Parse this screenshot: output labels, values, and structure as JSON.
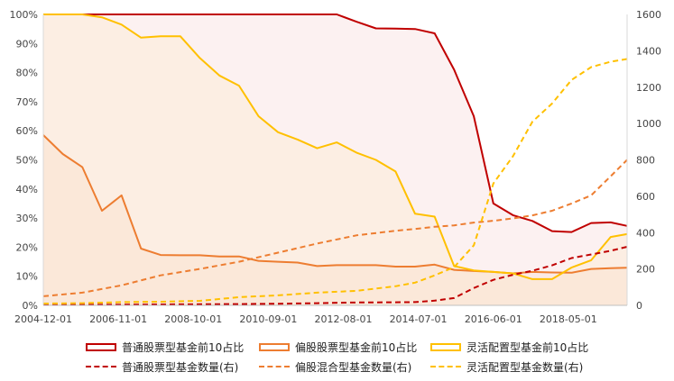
{
  "chart_data": {
    "type": "line",
    "title": "",
    "x_tick_labels": [
      "2004-12-01",
      "2006-11-01",
      "2008-10-01",
      "2010-09-01",
      "2012-08-01",
      "2014-07-01",
      "2016-06-01",
      "2018-05-01"
    ],
    "x_range": [
      "2004-12-01",
      "2019-11-01"
    ],
    "y_left": {
      "range": [
        0,
        100
      ],
      "unit": "%",
      "ticks": [
        "0%",
        "10%",
        "20%",
        "30%",
        "40%",
        "50%",
        "60%",
        "70%",
        "80%",
        "90%",
        "100%"
      ]
    },
    "y_right": {
      "range": [
        0,
        1600
      ],
      "ticks": [
        "0",
        "200",
        "400",
        "600",
        "800",
        "1000",
        "1200",
        "1400",
        "1600"
      ]
    },
    "grid": false,
    "legend_position": "bottom",
    "series": [
      {
        "name": "普通股票型基金前10占比",
        "axis": "left",
        "style": "solid-area",
        "color": "#c00000",
        "x": [
          "2004-12-01",
          "2005-12-01",
          "2006-12-01",
          "2007-12-01",
          "2008-12-01",
          "2009-12-01",
          "2010-12-01",
          "2011-06-01",
          "2011-12-01",
          "2012-06-01",
          "2012-12-01",
          "2013-06-01",
          "2013-12-01",
          "2014-06-01",
          "2014-12-01",
          "2015-06-01",
          "2015-12-01",
          "2016-06-01",
          "2016-12-01",
          "2017-06-01",
          "2017-12-01",
          "2018-06-01",
          "2018-12-01",
          "2019-06-01",
          "2019-11-01"
        ],
        "values": [
          100,
          100,
          100,
          100,
          100,
          100,
          100,
          100,
          100,
          100,
          97.5,
          95.2,
          95.1,
          95.0,
          93.5,
          81,
          65,
          35,
          31,
          29,
          25.5,
          25.2,
          28.3,
          28.5,
          27.3
        ]
      },
      {
        "name": "偏股股票型基金前10占比",
        "axis": "left",
        "style": "solid-area",
        "color": "#ed7d31",
        "x": [
          "2004-12-01",
          "2005-06-01",
          "2005-12-01",
          "2006-06-01",
          "2006-12-01",
          "2007-06-01",
          "2007-12-01",
          "2008-06-01",
          "2008-12-01",
          "2009-06-01",
          "2009-12-01",
          "2010-06-01",
          "2010-12-01",
          "2011-06-01",
          "2011-12-01",
          "2012-06-01",
          "2012-12-01",
          "2013-06-01",
          "2013-12-01",
          "2014-06-01",
          "2014-12-01",
          "2015-06-01",
          "2015-12-01",
          "2016-06-01",
          "2016-12-01",
          "2017-06-01",
          "2017-12-01",
          "2018-06-01",
          "2018-12-01",
          "2019-06-01",
          "2019-11-01"
        ],
        "values": [
          58.5,
          52,
          47.5,
          32.5,
          37.8,
          19.5,
          17.3,
          17.2,
          17.2,
          16.8,
          16.8,
          15.3,
          15.0,
          14.7,
          13.5,
          13.8,
          13.8,
          13.8,
          13.3,
          13.3,
          14,
          12.2,
          11.8,
          11.5,
          11,
          11.5,
          11.3,
          11.2,
          12.5,
          12.8,
          12.9
        ]
      },
      {
        "name": "灵活配置型基金前10占比",
        "axis": "left",
        "style": "solid-area",
        "color": "#ffc000",
        "x": [
          "2004-12-01",
          "2005-12-01",
          "2006-06-01",
          "2006-12-01",
          "2007-06-01",
          "2007-12-01",
          "2008-06-01",
          "2008-12-01",
          "2009-06-01",
          "2009-12-01",
          "2010-06-01",
          "2010-12-01",
          "2011-06-01",
          "2011-12-01",
          "2012-06-01",
          "2012-12-01",
          "2013-06-01",
          "2013-12-01",
          "2014-06-01",
          "2014-12-01",
          "2015-06-01",
          "2015-12-01",
          "2016-06-01",
          "2016-12-01",
          "2017-06-01",
          "2017-12-01",
          "2018-06-01",
          "2018-12-01",
          "2019-06-01",
          "2019-11-01"
        ],
        "values": [
          100,
          100,
          99,
          96.5,
          92,
          92.5,
          92.5,
          85,
          79,
          75.5,
          65,
          59.5,
          57,
          54,
          56,
          52.5,
          50,
          46,
          31.5,
          30.5,
          13.5,
          12,
          11.5,
          11,
          9.0,
          9.0,
          13,
          15.5,
          23.5,
          24.5
        ]
      },
      {
        "name": "普通股票型基金数量(右)",
        "axis": "right",
        "style": "dashed",
        "color": "#c00000",
        "x": [
          "2004-12-01",
          "2005-12-01",
          "2006-12-01",
          "2007-12-01",
          "2008-12-01",
          "2009-12-01",
          "2010-12-01",
          "2011-12-01",
          "2012-12-01",
          "2013-12-01",
          "2014-06-01",
          "2014-12-01",
          "2015-06-01",
          "2015-12-01",
          "2016-06-01",
          "2016-12-01",
          "2017-06-01",
          "2017-12-01",
          "2018-06-01",
          "2018-12-01",
          "2019-06-01",
          "2019-11-01"
        ],
        "values": [
          4,
          4,
          4,
          5,
          6,
          7,
          9,
          12,
          16,
          17,
          18,
          26,
          40,
          95,
          140,
          168,
          190,
          220,
          260,
          280,
          300,
          322
        ]
      },
      {
        "name": "偏股混合型基金数量(右)",
        "axis": "right",
        "style": "dashed",
        "color": "#ed7d31",
        "x": [
          "2004-12-01",
          "2005-12-01",
          "2006-12-01",
          "2007-12-01",
          "2008-12-01",
          "2009-12-01",
          "2010-12-01",
          "2011-12-01",
          "2012-12-01",
          "2013-12-01",
          "2014-06-01",
          "2014-12-01",
          "2015-06-01",
          "2015-12-01",
          "2016-06-01",
          "2016-12-01",
          "2017-06-01",
          "2017-12-01",
          "2018-06-01",
          "2018-12-01",
          "2019-06-01",
          "2019-11-01"
        ],
        "values": [
          50,
          70,
          110,
          165,
          200,
          240,
          290,
          340,
          385,
          410,
          420,
          432,
          440,
          455,
          465,
          478,
          495,
          520,
          560,
          605,
          710,
          800
        ]
      },
      {
        "name": "灵活配置型基金数量(右)",
        "axis": "right",
        "style": "dashed",
        "color": "#ffc000",
        "x": [
          "2004-12-01",
          "2005-12-01",
          "2006-12-01",
          "2007-12-01",
          "2008-12-01",
          "2009-12-01",
          "2010-12-01",
          "2011-12-01",
          "2012-12-01",
          "2013-12-01",
          "2014-06-01",
          "2014-12-01",
          "2015-06-01",
          "2015-12-01",
          "2016-06-01",
          "2016-12-01",
          "2017-06-01",
          "2017-12-01",
          "2018-06-01",
          "2018-12-01",
          "2019-06-01",
          "2019-11-01"
        ],
        "values": [
          10,
          12,
          18,
          20,
          25,
          45,
          55,
          70,
          80,
          105,
          125,
          165,
          210,
          330,
          670,
          820,
          1010,
          1110,
          1240,
          1310,
          1340,
          1355
        ]
      }
    ]
  }
}
